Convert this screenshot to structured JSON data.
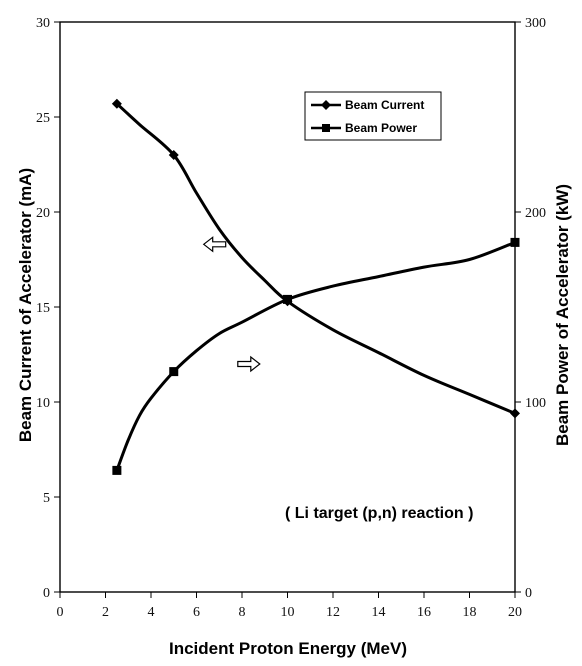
{
  "chart_data": {
    "type": "line",
    "x_ticks": [
      "0",
      "2",
      "4",
      "6",
      "8",
      "10",
      "12",
      "14",
      "16",
      "18",
      "20"
    ],
    "y_left_ticks": [
      "0",
      "5",
      "10",
      "15",
      "20",
      "25",
      "30"
    ],
    "y_right_ticks": [
      "0",
      "100",
      "200",
      "300"
    ],
    "xlabel": "Incident Proton Energy (MeV)",
    "ylabel_left": "Beam Current of Accelerator (mA)",
    "ylabel_right": "Beam Power of Accelerator (kW)",
    "xlim": [
      0,
      20
    ],
    "ylim_left": [
      0,
      30
    ],
    "ylim_right": [
      0,
      300
    ],
    "grid": false,
    "legend_position": "top-right",
    "annotation": "( Li target (p,n) reaction )",
    "series": [
      {
        "name": "Beam Current",
        "axis": "left",
        "marker": "diamond",
        "markers_x": [
          2.5,
          5,
          10,
          20
        ],
        "x": [
          2.5,
          3.5,
          5,
          6,
          7,
          8,
          9,
          10,
          12,
          14,
          16,
          18,
          20
        ],
        "y": [
          25.7,
          24.6,
          23.0,
          21.0,
          19.1,
          17.6,
          16.4,
          15.3,
          13.8,
          12.6,
          11.4,
          10.4,
          9.4
        ]
      },
      {
        "name": "Beam Power",
        "axis": "right",
        "marker": "square",
        "markers_x": [
          2.5,
          5,
          10,
          20
        ],
        "x": [
          2.5,
          3,
          3.5,
          4,
          5,
          6,
          7,
          8,
          10,
          12,
          14,
          16,
          18,
          20
        ],
        "y": [
          64,
          80,
          93,
          102,
          116,
          127,
          136,
          142,
          154,
          161,
          166,
          171,
          175,
          184
        ]
      }
    ],
    "arrows": [
      {
        "direction": "left",
        "points_to": "left",
        "x": 6.8,
        "y_left": 18.3
      },
      {
        "direction": "right",
        "points_to": "right",
        "x": 8.3,
        "y_left": 12.0
      }
    ],
    "colors": {
      "lines": "#000000",
      "axes": "#000000",
      "background": "#ffffff"
    }
  }
}
